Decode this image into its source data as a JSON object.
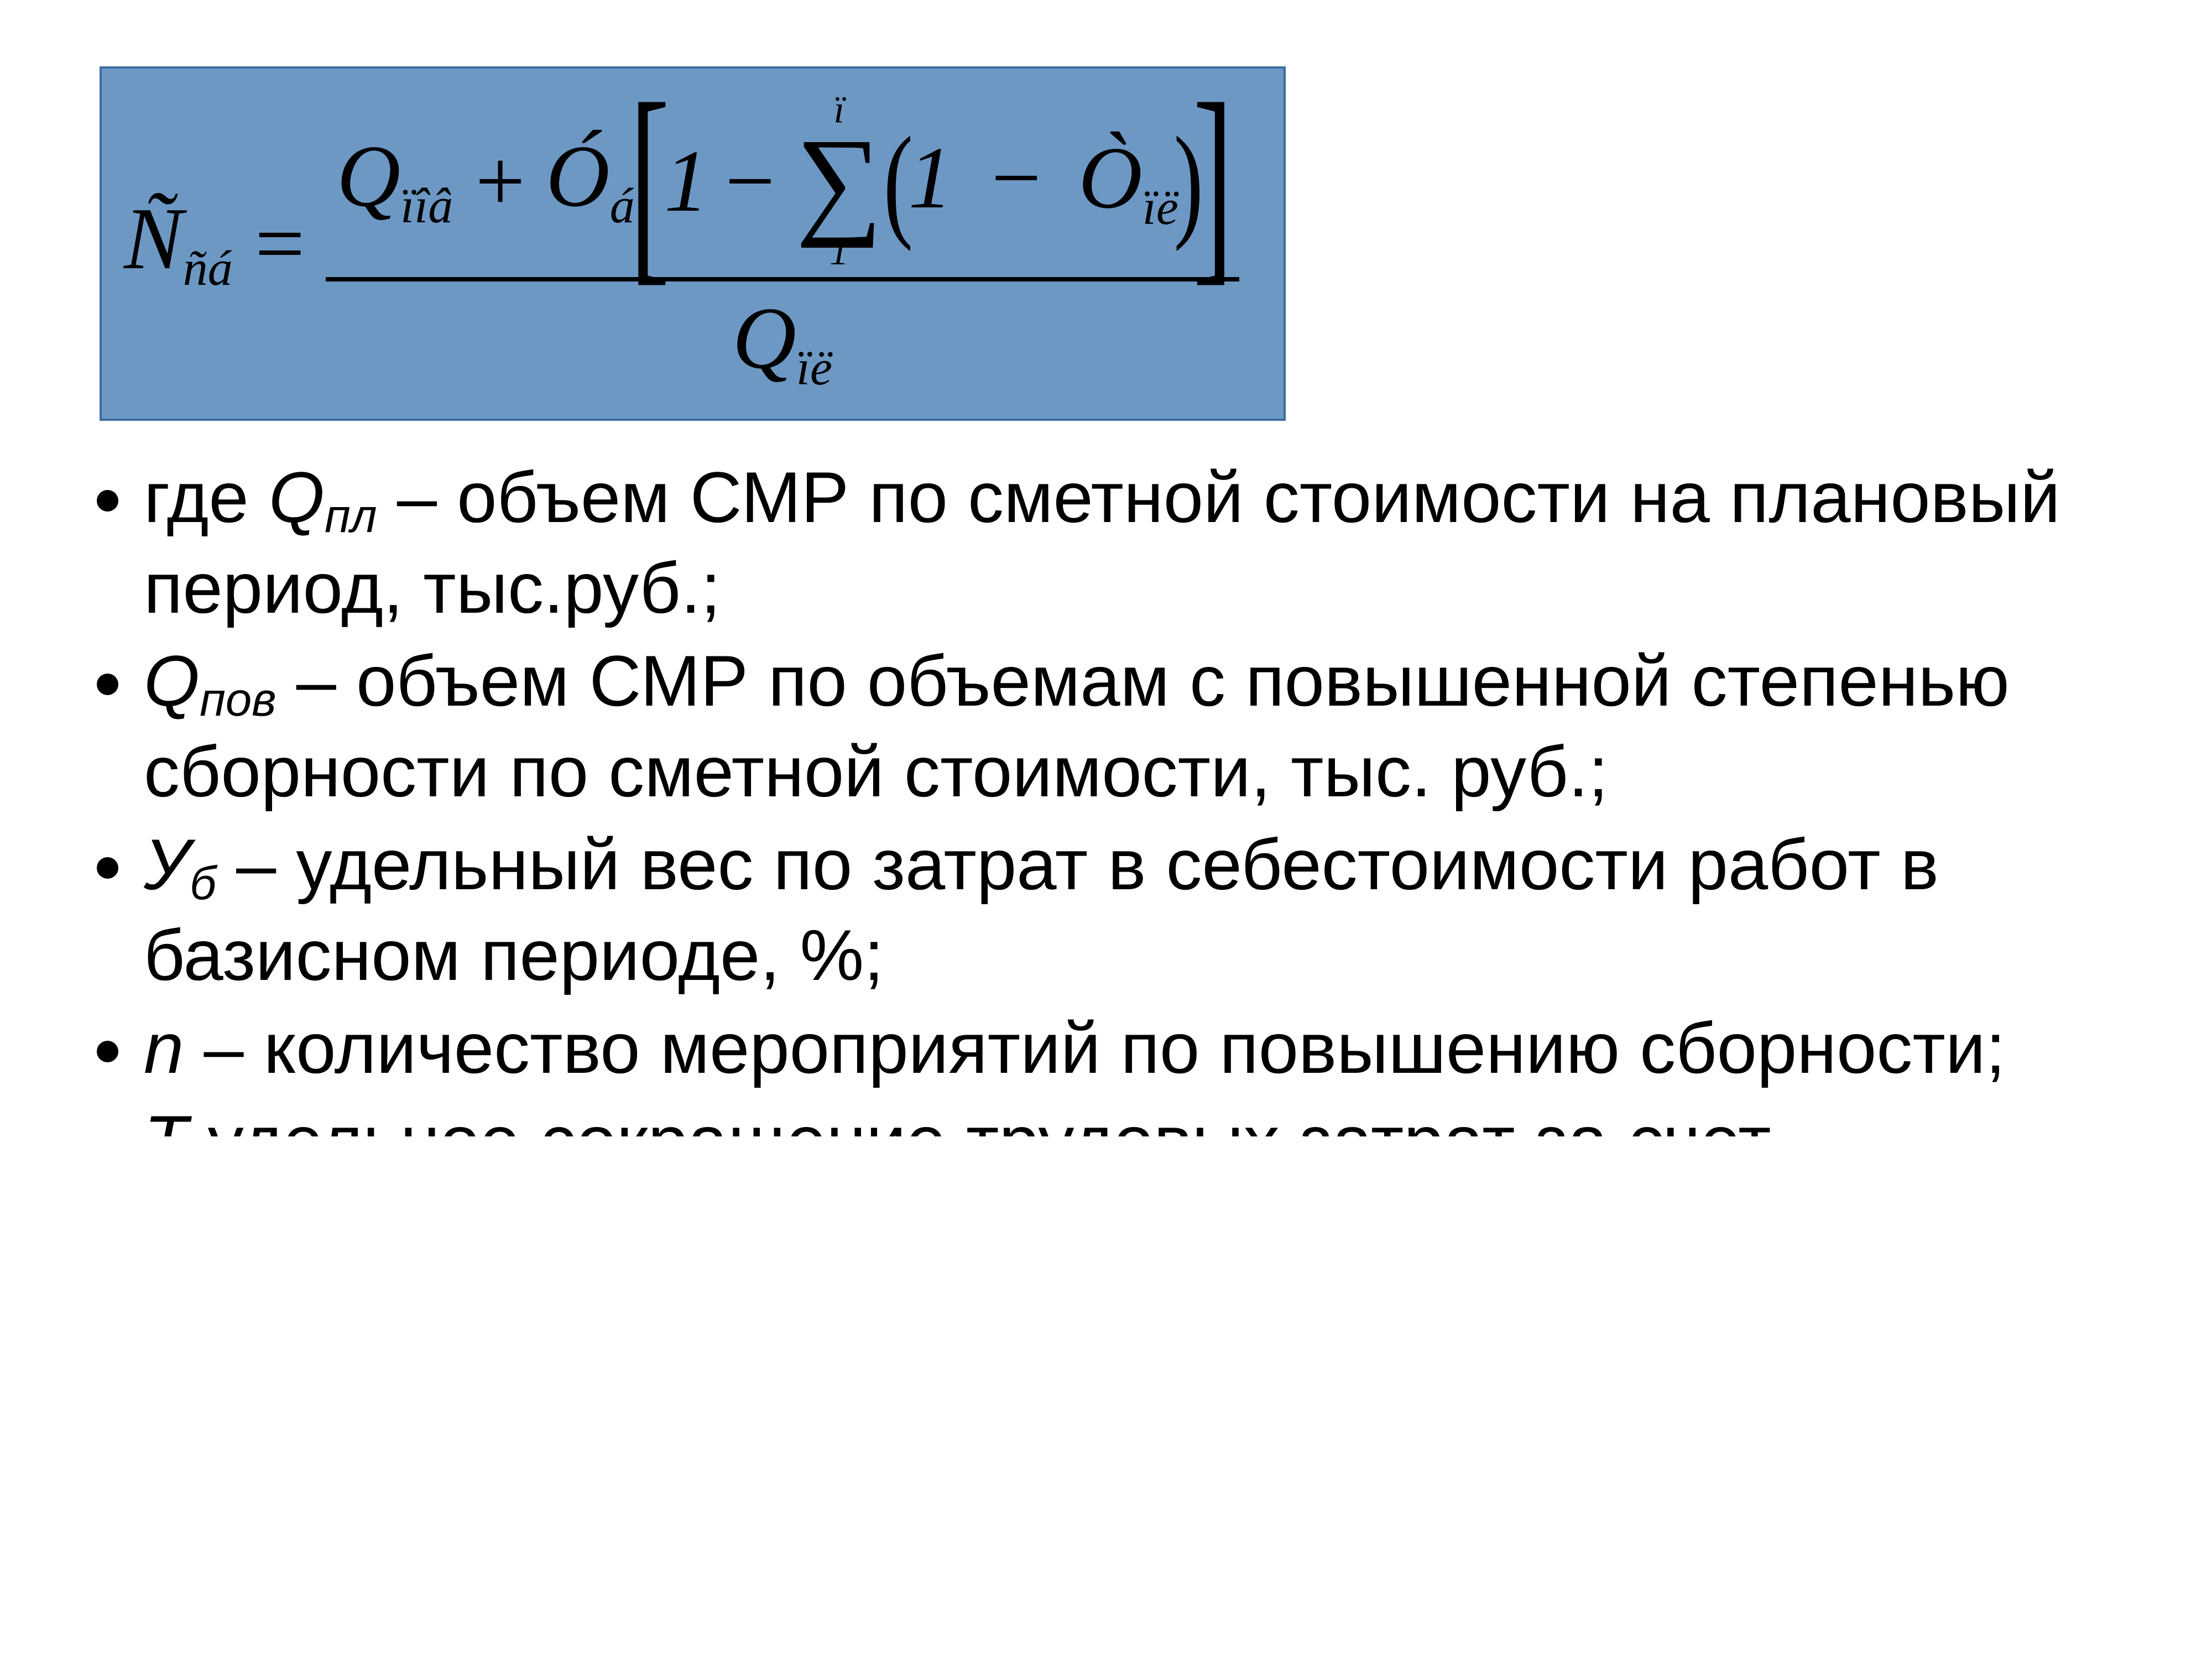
{
  "colors": {
    "formula_bg": "#6d98c4",
    "formula_border": "#3c6ea1",
    "text": "#000000",
    "page_bg": "#ffffff"
  },
  "formula": {
    "lhs_main": "Ñ",
    "lhs_sub": "ñá",
    "equals": "=",
    "num_Q": "Q",
    "num_Q_sub": "ïîâ",
    "plus": "+",
    "num_O": "Ó",
    "num_O_sub": "á",
    "one_a": "1",
    "minus_a": "−",
    "sigma_top": "ï",
    "sigma_sym": "∑",
    "sigma_bot": "1",
    "one_b": "1",
    "minus_b": "−",
    "inner_O": "Ò",
    "inner_O_sub": "ïë",
    "den_Q": "Q",
    "den_Q_sub": "ïë",
    "lbracket": "[",
    "rbracket": "]",
    "lparen": "(",
    "rparen": ")"
  },
  "definitions": [
    {
      "prefix": "где ",
      "var": "Q",
      "sub": "пл",
      "text": " – объем  СМР по сметной стоимости на плановый период, тыс.руб.;"
    },
    {
      "prefix": "",
      "var": "Q",
      "sub": "пов",
      "text": " – объем СМР по объемам с повышенной степенью сборности по сметной стоимости, тыс. руб.;"
    },
    {
      "prefix": "",
      "var": "У",
      "sub": "б",
      "text": " – удельный вес по затрат в себестоимости работ в базисном периоде, %;"
    },
    {
      "prefix": "",
      "var": "n",
      "sub": "",
      "text": " – количество мероприятий по повышению сборности;"
    }
  ],
  "cutoff": {
    "var": "Т",
    "sub": "",
    "text": "    удельное сокращение трудовых затрат за счет"
  }
}
